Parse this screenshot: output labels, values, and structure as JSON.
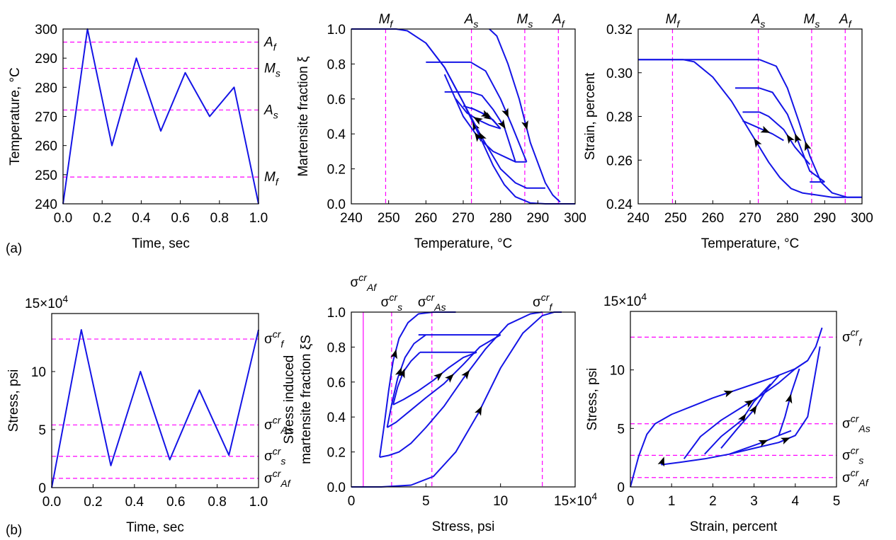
{
  "panel_labels": {
    "a": "(a)",
    "b": "(b)"
  },
  "colors": {
    "curve": "#1414e6",
    "reference_line": "#ff00ff",
    "arrow": "#000000"
  },
  "chart_data": [
    {
      "id": "a1",
      "type": "line",
      "xlabel": "Time, sec",
      "ylabel": "Temperature, °C",
      "xlim": [
        0,
        1
      ],
      "ylim": [
        240,
        300
      ],
      "xticks": [
        0,
        0.2,
        0.4,
        0.6,
        0.8,
        1.0
      ],
      "xtick_labels": [
        "0.0",
        "0.2",
        "0.4",
        "0.6",
        "0.8",
        "1.0"
      ],
      "yticks": [
        240,
        250,
        260,
        270,
        280,
        290,
        300
      ],
      "ytick_labels": [
        "240",
        "250",
        "260",
        "270",
        "280",
        "290",
        "300"
      ],
      "grid": false,
      "series": [
        {
          "x": [
            0,
            0.125,
            0.25,
            0.375,
            0.5,
            0.625,
            0.75,
            0.875,
            1.0
          ],
          "y": [
            240,
            300,
            260,
            290,
            265,
            285,
            270,
            280,
            240
          ]
        }
      ],
      "reference_lines": [
        {
          "axis": "y",
          "value": 295.5,
          "label": "A",
          "sub": "f"
        },
        {
          "axis": "y",
          "value": 286.5,
          "label": "M",
          "sub": "s"
        },
        {
          "axis": "y",
          "value": 272.2,
          "label": "A",
          "sub": "s"
        },
        {
          "axis": "y",
          "value": 249.2,
          "label": "M",
          "sub": "f"
        }
      ]
    },
    {
      "id": "a2",
      "type": "line",
      "xlabel": "Temperature, °C",
      "ylabel": "Martensite fraction ξ",
      "xlim": [
        240,
        300
      ],
      "ylim": [
        0,
        1
      ],
      "xticks": [
        240,
        250,
        260,
        270,
        280,
        290,
        300
      ],
      "xtick_labels": [
        "240",
        "250",
        "260",
        "270",
        "280",
        "290",
        "300"
      ],
      "yticks": [
        0,
        0.2,
        0.4,
        0.6,
        0.8,
        1.0
      ],
      "ytick_labels": [
        "0.0",
        "0.2",
        "0.4",
        "0.6",
        "0.8",
        "1.0"
      ],
      "grid": false,
      "series": [
        {
          "x": [
            240,
            252,
            255,
            260,
            265,
            270,
            275,
            278,
            281,
            284,
            288,
            292,
            296,
            300
          ],
          "y": [
            1,
            1,
            0.99,
            0.92,
            0.78,
            0.58,
            0.36,
            0.22,
            0.11,
            0.04,
            0.005,
            0,
            0,
            0
          ]
        },
        {
          "x": [
            260,
            265,
            270,
            275,
            280,
            284,
            287,
            290,
            292
          ],
          "y": [
            0.92,
            0.78,
            0.58,
            0.38,
            0.2,
            0.12,
            0.09,
            0.09,
            0.09
          ]
        },
        {
          "x": [
            265,
            270,
            274,
            278,
            282,
            284,
            287
          ],
          "y": [
            0.74,
            0.5,
            0.38,
            0.3,
            0.26,
            0.24,
            0.24
          ]
        },
        {
          "x": [
            268,
            271,
            274,
            277,
            280
          ],
          "y": [
            0.6,
            0.52,
            0.48,
            0.45,
            0.43
          ]
        },
        {
          "x": [
            272,
            275,
            278,
            280
          ],
          "y": [
            0.55,
            0.52,
            0.48,
            0.43
          ]
        },
        {
          "x": [
            277,
            279,
            282,
            285,
            288,
            292,
            294,
            296
          ],
          "y": [
            1,
            0.96,
            0.8,
            0.6,
            0.35,
            0.12,
            0.05,
            0.01
          ]
        },
        {
          "x": [
            272,
            276,
            280,
            283,
            287
          ],
          "y": [
            0.81,
            0.76,
            0.6,
            0.45,
            0.24
          ]
        },
        {
          "x": [
            272,
            275,
            278,
            281,
            284
          ],
          "y": [
            0.64,
            0.62,
            0.54,
            0.44,
            0.24
          ]
        },
        {
          "x": [
            270,
            273,
            277,
            280
          ],
          "y": [
            0.56,
            0.54,
            0.5,
            0.43
          ]
        }
      ],
      "plateaus": [
        {
          "x": [
            260,
            272
          ],
          "y": 0.81
        },
        {
          "x": [
            265,
            272
          ],
          "y": 0.64
        }
      ],
      "reference_lines": [
        {
          "axis": "x",
          "value": 249.2,
          "label": "M",
          "sub": "f"
        },
        {
          "axis": "x",
          "value": 272.2,
          "label": "A",
          "sub": "s"
        },
        {
          "axis": "x",
          "value": 286.5,
          "label": "M",
          "sub": "s"
        },
        {
          "axis": "x",
          "value": 295.5,
          "label": "A",
          "sub": "f"
        }
      ]
    },
    {
      "id": "a3",
      "type": "line",
      "xlabel": "Temperature, °C",
      "ylabel": "Strain, percent",
      "xlim": [
        240,
        300
      ],
      "ylim": [
        0.24,
        0.32
      ],
      "xticks": [
        240,
        250,
        260,
        270,
        280,
        290,
        300
      ],
      "xtick_labels": [
        "240",
        "250",
        "260",
        "270",
        "280",
        "290",
        "300"
      ],
      "yticks": [
        0.24,
        0.26,
        0.28,
        0.3,
        0.32
      ],
      "ytick_labels": [
        "0.24",
        "0.26",
        "0.28",
        "0.30",
        "0.32"
      ],
      "grid": false,
      "series": [
        {
          "x": [
            240,
            252,
            255,
            260,
            265,
            270,
            275,
            278,
            281,
            284,
            288,
            292,
            300
          ],
          "y": [
            0.306,
            0.306,
            0.305,
            0.298,
            0.287,
            0.273,
            0.259,
            0.252,
            0.247,
            0.245,
            0.244,
            0.243,
            0.243
          ]
        },
        {
          "x": [
            272.5,
            277,
            280,
            283,
            286,
            289,
            292,
            296,
            300
          ],
          "y": [
            0.306,
            0.303,
            0.293,
            0.278,
            0.262,
            0.25,
            0.245,
            0.243,
            0.243
          ]
        },
        {
          "x": [
            272.5,
            276,
            280,
            283,
            286,
            290
          ],
          "y": [
            0.293,
            0.291,
            0.281,
            0.268,
            0.255,
            0.25
          ]
        },
        {
          "x": [
            272.5,
            275,
            279,
            282,
            286
          ],
          "y": [
            0.282,
            0.28,
            0.274,
            0.266,
            0.258
          ]
        },
        {
          "x": [
            268,
            272,
            276,
            279
          ],
          "y": [
            0.278,
            0.275,
            0.272,
            0.269
          ]
        }
      ],
      "plateaus": [
        {
          "x": [
            240,
            272.5
          ],
          "y": 0.306
        },
        {
          "x": [
            266,
            272.5
          ],
          "y": 0.293
        },
        {
          "x": [
            268,
            272.5
          ],
          "y": 0.282
        },
        {
          "x": [
            286,
            290
          ],
          "y": 0.25
        }
      ],
      "reference_lines": [
        {
          "axis": "x",
          "value": 249.2,
          "label": "M",
          "sub": "f"
        },
        {
          "axis": "x",
          "value": 272.2,
          "label": "A",
          "sub": "s"
        },
        {
          "axis": "x",
          "value": 286.5,
          "label": "M",
          "sub": "s"
        },
        {
          "axis": "x",
          "value": 295.5,
          "label": "A",
          "sub": "f"
        }
      ]
    },
    {
      "id": "b1",
      "type": "line",
      "xlabel": "Time, sec",
      "ylabel": "Stress, psi",
      "xlim": [
        0,
        1
      ],
      "ylim": [
        0,
        150000
      ],
      "xticks": [
        0,
        0.2,
        0.4,
        0.6,
        0.8,
        1.0
      ],
      "xtick_labels": [
        "0.0",
        "0.2",
        "0.4",
        "0.6",
        "0.8",
        "1.0"
      ],
      "yticks": [
        0,
        50000,
        100000
      ],
      "ytick_labels": [
        "0",
        "5",
        "10"
      ],
      "multiplier_label": "15×10",
      "multiplier_exp": "4",
      "grid": false,
      "series": [
        {
          "x": [
            0,
            0.143,
            0.286,
            0.429,
            0.571,
            0.714,
            0.857,
            1.0
          ],
          "y": [
            0,
            136000,
            19000,
            100000,
            24000,
            84000,
            28000,
            136000
          ]
        }
      ],
      "reference_lines": [
        {
          "axis": "y",
          "value": 128000,
          "label": "σ",
          "sup": "cr",
          "sub": "f"
        },
        {
          "axis": "y",
          "value": 54000,
          "label": "σ",
          "sup": "cr",
          "sub": "As"
        },
        {
          "axis": "y",
          "value": 27000,
          "label": "σ",
          "sup": "cr",
          "sub": "s"
        },
        {
          "axis": "y",
          "value": 8000,
          "label": "σ",
          "sup": "cr",
          "sub": "Af"
        }
      ]
    },
    {
      "id": "b2",
      "type": "line",
      "xlabel": "Stress, psi",
      "ylabel": "Stress induced martensite fraction ξS",
      "ylabel_lines": [
        "Stress induced",
        "martensite fraction ξS"
      ],
      "xlim": [
        0,
        150000
      ],
      "ylim": [
        0,
        1
      ],
      "xticks": [
        0,
        50000,
        100000
      ],
      "xtick_labels": [
        "0",
        "5",
        "10"
      ],
      "multiplier_label": "15×10",
      "multiplier_exp": "4",
      "yticks": [
        0,
        0.2,
        0.4,
        0.6,
        0.8,
        1.0
      ],
      "ytick_labels": [
        "0.0",
        "0.2",
        "0.4",
        "0.6",
        "0.8",
        "1.0"
      ],
      "grid": false,
      "series": [
        {
          "x": [
            0,
            20000,
            40000,
            55000,
            70000,
            85000,
            100000,
            115000,
            128000,
            136000,
            141000
          ],
          "y": [
            0,
            0,
            0.01,
            0.06,
            0.2,
            0.42,
            0.68,
            0.88,
            0.98,
            1,
            1
          ]
        },
        {
          "x": [
            19000,
            25000,
            32000,
            40000,
            50000,
            62000,
            75000,
            90000,
            105000,
            120000,
            128000
          ],
          "y": [
            0.17,
            0.18,
            0.2,
            0.25,
            0.34,
            0.46,
            0.62,
            0.79,
            0.93,
            0.99,
            1
          ]
        },
        {
          "x": [
            24000,
            30000,
            40000,
            50000,
            62000,
            75000,
            86000,
            100000
          ],
          "y": [
            0.34,
            0.37,
            0.44,
            0.51,
            0.59,
            0.7,
            0.8,
            0.87
          ]
        },
        {
          "x": [
            28000,
            35000,
            45000,
            55000,
            65000,
            75000,
            84000
          ],
          "y": [
            0.47,
            0.5,
            0.55,
            0.61,
            0.68,
            0.74,
            0.77
          ]
        },
        {
          "x": [
            19000,
            22000,
            25000,
            28000,
            32000,
            38000,
            45000,
            55000,
            70000
          ],
          "y": [
            0.17,
            0.35,
            0.55,
            0.72,
            0.85,
            0.94,
            0.99,
            1,
            1
          ]
        },
        {
          "x": [
            24000,
            27000,
            31000,
            36000,
            42000,
            50000
          ],
          "y": [
            0.34,
            0.47,
            0.62,
            0.74,
            0.82,
            0.87
          ]
        },
        {
          "x": [
            28000,
            31000,
            35000,
            40000,
            46000
          ],
          "y": [
            0.47,
            0.57,
            0.66,
            0.72,
            0.77
          ]
        }
      ],
      "plateaus": [
        {
          "x": [
            45000,
            100000
          ],
          "y": 0.87
        },
        {
          "x": [
            46000,
            84000
          ],
          "y": 0.77
        }
      ],
      "reference_lines": [
        {
          "axis": "x",
          "value": 8000,
          "label": "σ",
          "sup": "cr",
          "sub": "Af",
          "style": "solid"
        },
        {
          "axis": "x",
          "value": 27000,
          "label": "σ",
          "sup": "cr",
          "sub": "s"
        },
        {
          "axis": "x",
          "value": 54000,
          "label": "σ",
          "sup": "cr",
          "sub": "As"
        },
        {
          "axis": "x",
          "value": 128000,
          "label": "σ",
          "sup": "cr",
          "sub": "f"
        }
      ]
    },
    {
      "id": "b3",
      "type": "line",
      "xlabel": "Strain, percent",
      "ylabel": "Stress, psi",
      "xlim": [
        0,
        5
      ],
      "ylim": [
        0,
        150000
      ],
      "xticks": [
        0,
        1,
        2,
        3,
        4,
        5
      ],
      "xtick_labels": [
        "0",
        "1",
        "2",
        "3",
        "4",
        "5"
      ],
      "yticks": [
        0,
        50000,
        100000
      ],
      "ytick_labels": [
        "0",
        "5",
        "10"
      ],
      "multiplier_label": "15×10",
      "multiplier_exp": "4",
      "grid": false,
      "series": [
        {
          "x": [
            0,
            0.2,
            0.4,
            0.6,
            1.0,
            1.5,
            2.0,
            2.5,
            3.0,
            3.5,
            4.0,
            4.3,
            4.5,
            4.65
          ],
          "y": [
            0,
            26000,
            45000,
            54000,
            62000,
            69000,
            76000,
            82000,
            88000,
            94000,
            101000,
            108000,
            120000,
            136000
          ]
        },
        {
          "x": [
            0.75,
            1.2,
            1.8,
            2.4,
            3.0,
            3.6,
            4.0,
            4.3,
            4.6
          ],
          "y": [
            19000,
            21000,
            24000,
            28000,
            33000,
            38000,
            44000,
            60000,
            120000
          ]
        },
        {
          "x": [
            0.75,
            0.78,
            0.8
          ],
          "y": [
            19000,
            22000,
            24000
          ]
        },
        {
          "x": [
            1.3,
            1.7,
            2.2,
            2.7,
            3.2,
            3.6,
            4.0,
            4.3
          ],
          "y": [
            24000,
            43000,
            57000,
            68000,
            79000,
            89000,
            101000,
            108000
          ]
        },
        {
          "x": [
            1.8,
            2.2,
            2.7,
            3.0,
            3.4
          ],
          "y": [
            28000,
            43000,
            57000,
            73000,
            88000
          ]
        },
        {
          "x": [
            2.2,
            2.6,
            3.0,
            3.3,
            3.6
          ],
          "y": [
            33000,
            50000,
            66000,
            83000,
            95000
          ]
        },
        {
          "x": [
            2.4,
            2.8,
            3.2,
            3.6,
            3.9
          ],
          "y": [
            28000,
            33000,
            38000,
            44000,
            48000
          ]
        },
        {
          "x": [
            3.6,
            3.75,
            3.9,
            4.1
          ],
          "y": [
            44000,
            60000,
            80000,
            101000
          ]
        }
      ],
      "reference_lines": [
        {
          "axis": "y",
          "value": 128000,
          "label": "σ",
          "sup": "cr",
          "sub": "f"
        },
        {
          "axis": "y",
          "value": 54000,
          "label": "σ",
          "sup": "cr",
          "sub": "As"
        },
        {
          "axis": "y",
          "value": 27000,
          "label": "σ",
          "sup": "cr",
          "sub": "s"
        },
        {
          "axis": "y",
          "value": 8000,
          "label": "σ",
          "sup": "cr",
          "sub": "Af"
        }
      ]
    }
  ]
}
